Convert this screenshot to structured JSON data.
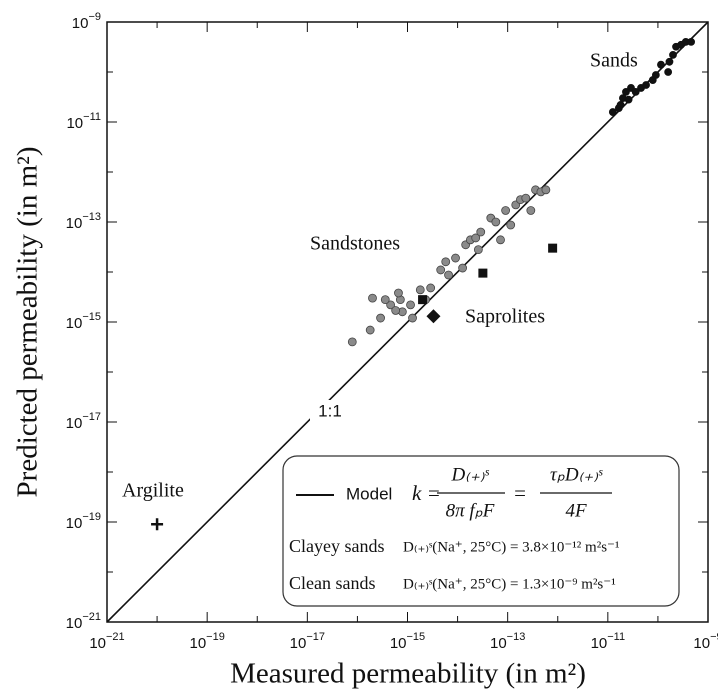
{
  "chart_data": {
    "type": "scatter",
    "xlabel": "Measured permeability (in m²)",
    "ylabel": "Predicted permeability (in m²)",
    "xscale": "log",
    "yscale": "log",
    "xlim": [
      1e-21,
      1e-09
    ],
    "ylim": [
      1e-21,
      1e-09
    ],
    "xticks": [
      {
        "value": 1e-21,
        "label": "10−21"
      },
      {
        "value": 1e-19,
        "label": "10−19"
      },
      {
        "value": 1e-17,
        "label": "10−17"
      },
      {
        "value": 1e-15,
        "label": "10−15"
      },
      {
        "value": 1e-13,
        "label": "10−13"
      },
      {
        "value": 1e-11,
        "label": "10−11"
      },
      {
        "value": 1e-09,
        "label": "10−9"
      }
    ],
    "yticks": [
      {
        "value": 1e-21,
        "label": "10−21"
      },
      {
        "value": 1e-19,
        "label": "10−19"
      },
      {
        "value": 1e-17,
        "label": "10−17"
      },
      {
        "value": 1e-15,
        "label": "10−15"
      },
      {
        "value": 1e-13,
        "label": "10−13"
      },
      {
        "value": 1e-11,
        "label": "10−11"
      },
      {
        "value": 1e-09,
        "label": "10−9"
      }
    ],
    "minor_ticks": [
      1e-20,
      1e-18,
      1e-16,
      1e-14,
      1e-12,
      1e-10
    ],
    "reference_line": {
      "label": "1:1",
      "x": [
        1e-21,
        1e-09
      ],
      "y": [
        1e-21,
        1e-09
      ]
    },
    "series": [
      {
        "name": "Sands",
        "color": "#111111",
        "marker": "circle",
        "x": [
          1.26e-11,
          1.66e-11,
          2e-11,
          2.3e-11,
          2.9e-11,
          3.6e-11,
          4.6e-11,
          5.8e-11,
          7.9e-11,
          9.1e-11,
          1.15e-10,
          1.6e-10,
          1.7e-10,
          2e-10,
          2.3e-10,
          2.9e-10,
          3.6e-10,
          4.6e-10,
          1.8e-11,
          2.6e-11
        ],
        "y": [
          1.58e-11,
          1.9e-11,
          3e-11,
          4e-11,
          4.8e-11,
          4e-11,
          4.8e-11,
          5.5e-11,
          6.9e-11,
          8.7e-11,
          1.4e-10,
          1e-10,
          1.6e-10,
          2.2e-10,
          3.2e-10,
          3.5e-10,
          4e-10,
          4e-10,
          2.2e-11,
          2.8e-11
        ]
      },
      {
        "name": "Sandstones",
        "color": "#8a8a8a",
        "marker": "circle",
        "x": [
          7.9e-17,
          1.8e-16,
          2.9e-16,
          4.6e-16,
          7.2e-16,
          1.15e-15,
          1.8e-15,
          2e-16,
          3.6e-16,
          6.6e-16,
          7.9e-16,
          1.26e-15,
          2.3e-15,
          2.9e-15,
          4.6e-15,
          5.8e-15,
          6.6e-15,
          9.1e-15,
          1.26e-14,
          1.45e-14,
          1.8e-14,
          2.6e-14,
          2.9e-14,
          4.6e-14,
          5.8e-14,
          7.2e-14,
          9.1e-14,
          1.15e-13,
          1.45e-13,
          1.8e-13,
          2.3e-13,
          2.9e-13,
          3.6e-13,
          4.6e-13,
          5.8e-13,
          2.3e-14,
          5.8e-16
        ],
        "y": [
          4e-16,
          6.9e-16,
          1.2e-15,
          2.2e-15,
          2.8e-15,
          2.2e-15,
          4.4e-15,
          3e-15,
          2.8e-15,
          3.8e-15,
          1.6e-15,
          1.2e-15,
          2.8e-15,
          4.8e-15,
          1.1e-14,
          1.6e-14,
          8.7e-15,
          1.9e-14,
          1.2e-14,
          3.5e-14,
          4.4e-14,
          2.8e-14,
          6.3e-14,
          1.2e-13,
          1e-13,
          4.4e-14,
          1.7e-13,
          8.7e-14,
          2.2e-13,
          2.8e-13,
          3e-13,
          1.7e-13,
          4.4e-13,
          4e-13,
          4.4e-13,
          4.8e-14,
          1.7e-15
        ]
      },
      {
        "name": "Saprolites",
        "color": "#111111",
        "marker": [
          "square",
          "square",
          "square",
          "diamond"
        ],
        "x": [
          2e-15,
          3.2e-14,
          7.9e-13,
          3.3e-15
        ],
        "y": [
          2.8e-15,
          9.5e-15,
          3e-14,
          1.3e-15
        ]
      },
      {
        "name": "Argilite",
        "color": "#111111",
        "marker": "plus",
        "x": [
          1e-20
        ],
        "y": [
          9e-20
        ]
      }
    ],
    "legend": {
      "model_label": "Model",
      "formula_lhs": "k =",
      "frac1_num": "D₍₊₎ˢ",
      "frac1_den": "8π fₚF",
      "equals": "=",
      "frac2_num": "τₚD₍₊₎ˢ",
      "frac2_den": "4F",
      "rows": [
        {
          "label": "Clayey sands",
          "formula": "D₍₊₎ˢ(Na⁺, 25°C) = 3.8×10⁻¹² m²s⁻¹"
        },
        {
          "label": "Clean sands",
          "formula": "D₍₊₎ˢ(Na⁺, 25°C) = 1.3×10⁻⁹ m²s⁻¹"
        }
      ]
    }
  }
}
